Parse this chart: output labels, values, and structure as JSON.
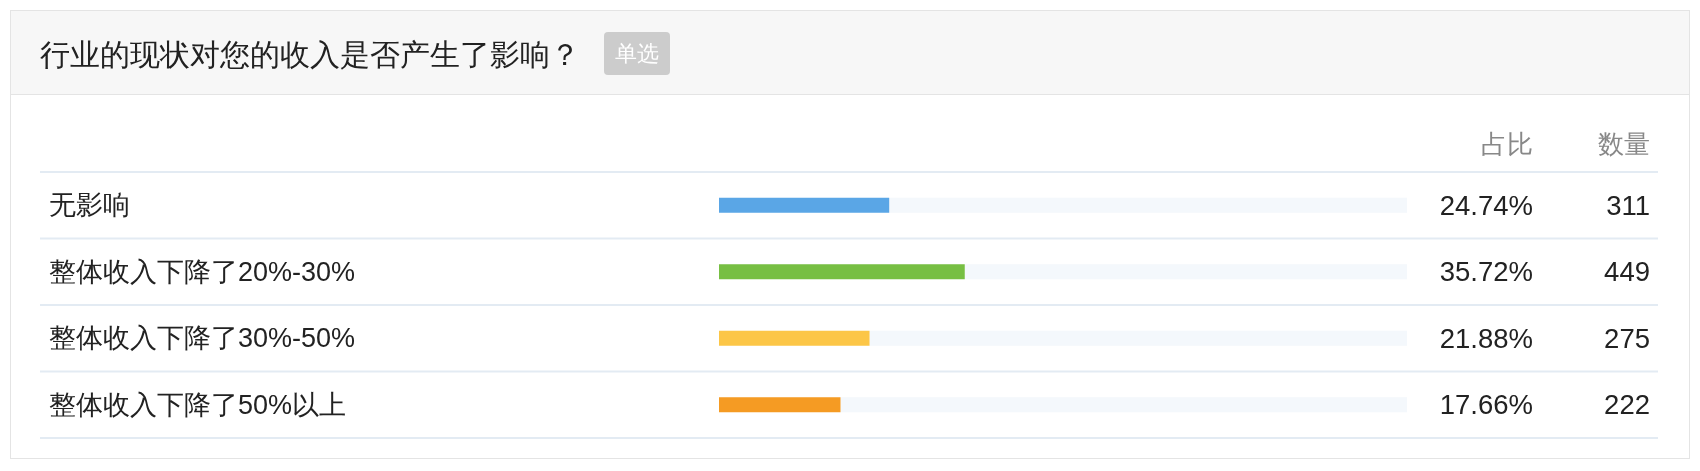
{
  "chart_data": {
    "type": "bar",
    "orientation": "horizontal",
    "title": "行业的现状对您的收入是否产生了影响？",
    "subtitle": "单选",
    "categories": [
      "无影响",
      "整体收入下降了20%-30%",
      "整体收入下降了30%-50%",
      "整体收入下降了50%以上"
    ],
    "series": [
      {
        "name": "占比",
        "colors": [
          "#5aa6e6",
          "#77bf43",
          "#fcc647",
          "#f59b23"
        ],
        "values": [
          24.74,
          35.72,
          21.88,
          17.66
        ],
        "value_labels": [
          "24.74%",
          "35.72%",
          "21.88%",
          "17.66%"
        ]
      }
    ],
    "xlim": [
      0,
      100
    ],
    "tick_labels": "y",
    "annotations": [
      "数量",
      "311",
      "449",
      "275",
      "222"
    ]
  }
}
